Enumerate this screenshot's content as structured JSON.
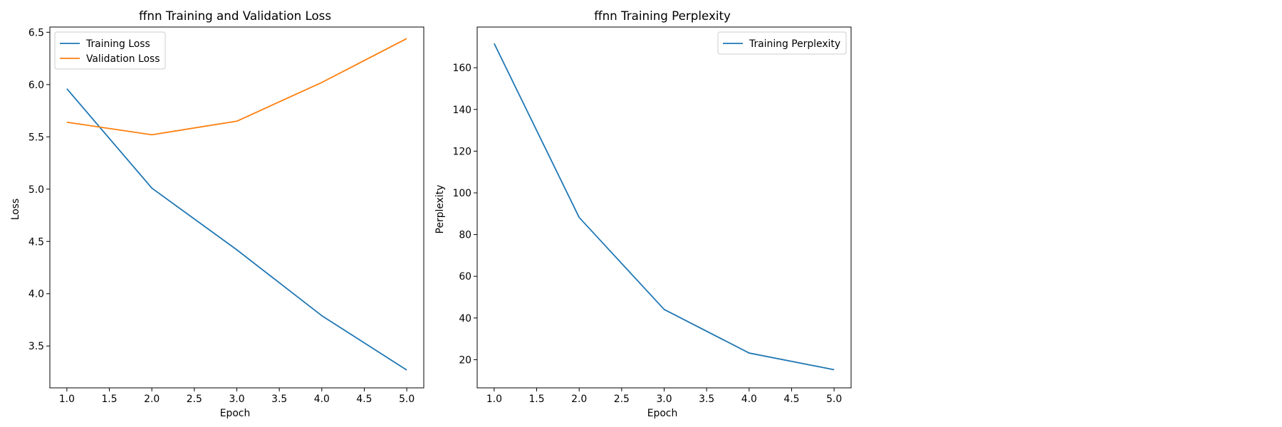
{
  "chart_data": [
    {
      "type": "line",
      "title": "ffnn Training and Validation Loss",
      "xlabel": "Epoch",
      "ylabel": "Loss",
      "x": [
        1,
        2,
        3,
        4,
        5
      ],
      "xlim": [
        0.8,
        5.2
      ],
      "ylim": [
        3.1,
        6.55
      ],
      "xticks": [
        "1.0",
        "1.5",
        "2.0",
        "2.5",
        "3.0",
        "3.5",
        "4.0",
        "4.5",
        "5.0"
      ],
      "yticks": [
        "3.5",
        "4.0",
        "4.5",
        "5.0",
        "5.5",
        "6.0",
        "6.5"
      ],
      "grid": false,
      "legend_position": "upper left",
      "series": [
        {
          "name": "Training Loss",
          "color": "#1f77b4",
          "values": [
            5.96,
            5.01,
            4.42,
            3.79,
            3.27
          ]
        },
        {
          "name": "Validation Loss",
          "color": "#ff7f0e",
          "values": [
            5.64,
            5.52,
            5.65,
            6.02,
            6.44
          ]
        }
      ]
    },
    {
      "type": "line",
      "title": "ffnn Training Perplexity",
      "xlabel": "Epoch",
      "ylabel": "Perplexity",
      "x": [
        1,
        2,
        3,
        4,
        5
      ],
      "xlim": [
        0.8,
        5.2
      ],
      "ylim": [
        6.5,
        179.5
      ],
      "xticks": [
        "1.0",
        "1.5",
        "2.0",
        "2.5",
        "3.0",
        "3.5",
        "4.0",
        "4.5",
        "5.0"
      ],
      "yticks": [
        "20",
        "40",
        "60",
        "80",
        "100",
        "120",
        "140",
        "160"
      ],
      "grid": false,
      "legend_position": "upper right",
      "series": [
        {
          "name": "Training Perplexity",
          "color": "#1f77b4",
          "values": [
            171.6,
            88.2,
            44.1,
            23.2,
            15.2
          ]
        }
      ]
    }
  ]
}
